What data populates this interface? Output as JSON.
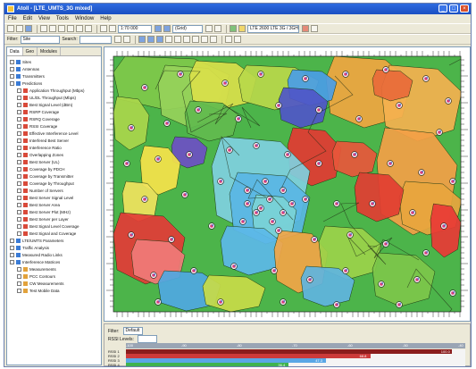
{
  "window": {
    "title": "Atoll - [LTE_UMTS_3G mixed]"
  },
  "menu": [
    "File",
    "Edit",
    "View",
    "Tools",
    "Window",
    "Help"
  ],
  "toolbar": {
    "zoom_value": "1:70 000",
    "layer_combo": "(Grid)",
    "site_combo": "LTE 2600 LTE 3G / 3GHz",
    "filter_label": "Filter:",
    "filter_combo": "Site",
    "search_label": "Search:",
    "search_value": ""
  },
  "left_panel": {
    "tabs": [
      "Data",
      "Geo",
      "Modules"
    ],
    "tree": [
      {
        "label": "Sites",
        "depth": 0,
        "color": "#3a7bd5"
      },
      {
        "label": "Antennas",
        "depth": 0,
        "color": "#3a7bd5"
      },
      {
        "label": "Transmitters",
        "depth": 0,
        "color": "#3a7bd5"
      },
      {
        "label": "Predictions",
        "depth": 0,
        "color": "#3a7bd5"
      },
      {
        "label": "Application Throughput (Mbps)",
        "depth": 1,
        "color": "#d94a3a"
      },
      {
        "label": "UL/DL Throughput (Mbps)",
        "depth": 1,
        "color": "#d94a3a"
      },
      {
        "label": "Best Signal Level (dBm)",
        "depth": 1,
        "color": "#d94a3a"
      },
      {
        "label": "RSRP Coverage",
        "depth": 1,
        "color": "#d94a3a"
      },
      {
        "label": "RSRQ Coverage",
        "depth": 1,
        "color": "#d94a3a"
      },
      {
        "label": "RSSI Coverage",
        "depth": 1,
        "color": "#d94a3a"
      },
      {
        "label": "Effective Interference Level",
        "depth": 1,
        "color": "#d94a3a"
      },
      {
        "label": "Interfered Best Server",
        "depth": 1,
        "color": "#d94a3a"
      },
      {
        "label": "Interference Ratio",
        "depth": 1,
        "color": "#d94a3a"
      },
      {
        "label": "Overlapping Zones",
        "depth": 1,
        "color": "#d94a3a"
      },
      {
        "label": "Best Server (UL)",
        "depth": 1,
        "color": "#d94a3a"
      },
      {
        "label": "Coverage by PDCH",
        "depth": 1,
        "color": "#d94a3a"
      },
      {
        "label": "Coverage by Transmitter",
        "depth": 1,
        "color": "#d94a3a"
      },
      {
        "label": "Coverage by Throughput",
        "depth": 1,
        "color": "#d94a3a"
      },
      {
        "label": "Number of Servers",
        "depth": 1,
        "color": "#d94a3a"
      },
      {
        "label": "Best Server Signal Level",
        "depth": 1,
        "color": "#d94a3a"
      },
      {
        "label": "Best Server Area",
        "depth": 1,
        "color": "#d94a3a"
      },
      {
        "label": "Best Server Plot (MHz)",
        "depth": 1,
        "color": "#d94a3a"
      },
      {
        "label": "Best Server per Layer",
        "depth": 1,
        "color": "#d94a3a"
      },
      {
        "label": "Best Signal Level Coverage",
        "depth": 1,
        "color": "#d94a3a"
      },
      {
        "label": "Best Signal and Coverage",
        "depth": 1,
        "color": "#d94a3a"
      },
      {
        "label": "LTE/UMTS Parameters",
        "depth": 0,
        "color": "#3a7bd5"
      },
      {
        "label": "Traffic Analysis",
        "depth": 0,
        "color": "#3a7bd5"
      },
      {
        "label": "Measured Radio Links",
        "depth": 0,
        "color": "#3a7bd5"
      },
      {
        "label": "Interference Matrices",
        "depth": 0,
        "color": "#3a7bd5"
      },
      {
        "label": "Measurements",
        "depth": 1,
        "color": "#e2a23c"
      },
      {
        "label": "PCC Contours",
        "depth": 1,
        "color": "#e2a23c"
      },
      {
        "label": "CW Measurements",
        "depth": 1,
        "color": "#e2a23c"
      },
      {
        "label": "Test Mobile Data",
        "depth": 1,
        "color": "#e2a23c"
      }
    ]
  },
  "bottom_panel": {
    "filter_label": "Filter:",
    "filter_value": "Default",
    "layer_label": "RSSI Levels:",
    "scale_ticks": [
      "-100",
      "-90",
      "-80",
      "-70",
      "-60",
      "-50",
      "-40"
    ],
    "bars": [
      {
        "label": "RSSI 1",
        "value": "100.0",
        "fraction": 0.96,
        "color": "#8a1d1d"
      },
      {
        "label": "RSSI 2",
        "value": "68.8",
        "fraction": 0.72,
        "color": "#cc3a3a"
      },
      {
        "label": "RSSI 3",
        "value": "47.3",
        "fraction": 0.59,
        "color": "#5aa7e6"
      },
      {
        "label": "RSSI 4",
        "value": "36.4",
        "fraction": 0.48,
        "color": "#3fb34f"
      }
    ]
  }
}
